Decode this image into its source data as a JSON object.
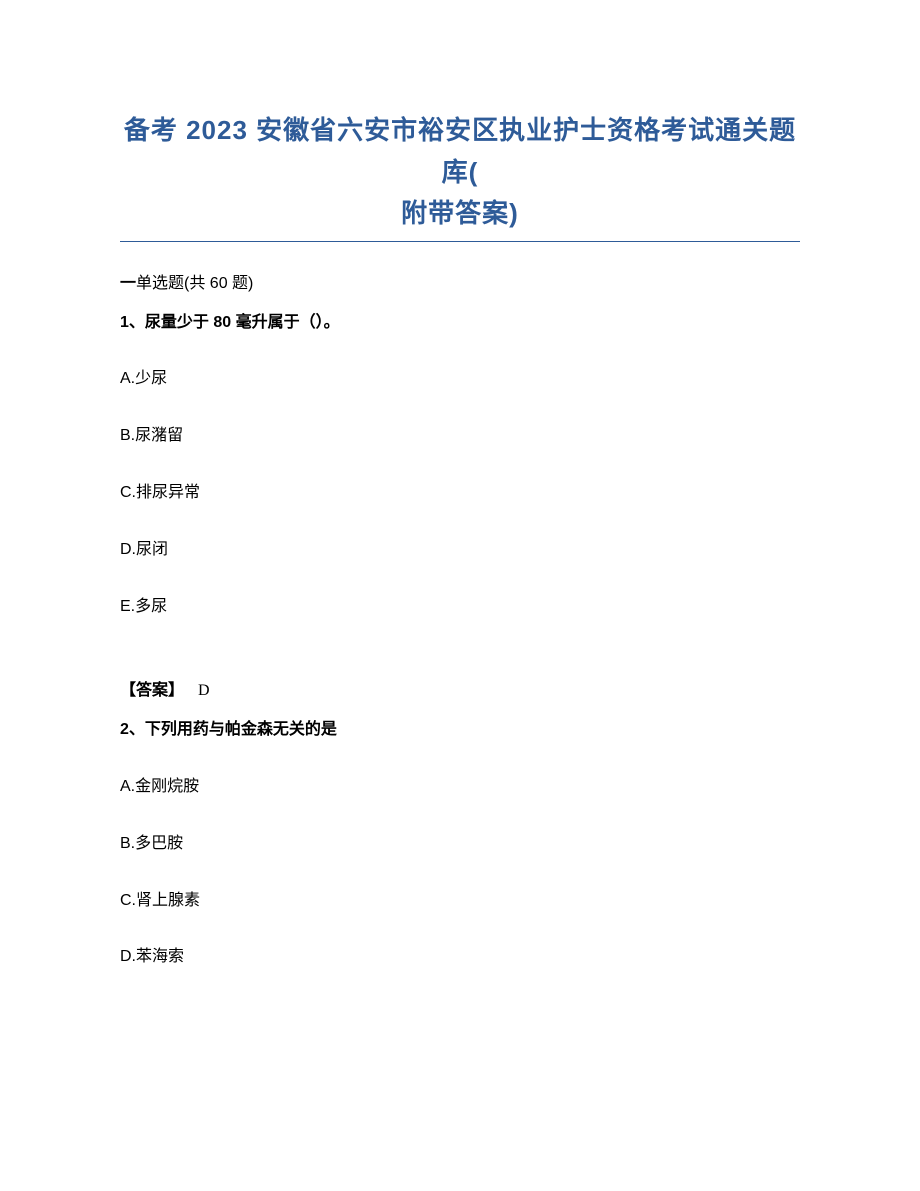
{
  "title": {
    "line1": "备考 2023 安徽省六安市裕安区执业护士资格考试通关题库(",
    "line2": "附带答案)"
  },
  "section": {
    "prefix": "一",
    "label": "单选题(共 60 题)"
  },
  "q1": {
    "stem": "1、尿量少于 80 毫升属于（）。",
    "optA": "A.少尿",
    "optB": "B.尿潴留",
    "optC": "C.排尿异常",
    "optD": "D.尿闭",
    "optE": "E.多尿",
    "answerLabel": "【答案】",
    "answerLetter": "D"
  },
  "q2": {
    "stem": "2、下列用药与帕金森无关的是",
    "optA": "A.金刚烷胺",
    "optB": "B.多巴胺",
    "optC": "C.肾上腺素",
    "optD": "D.苯海索"
  }
}
